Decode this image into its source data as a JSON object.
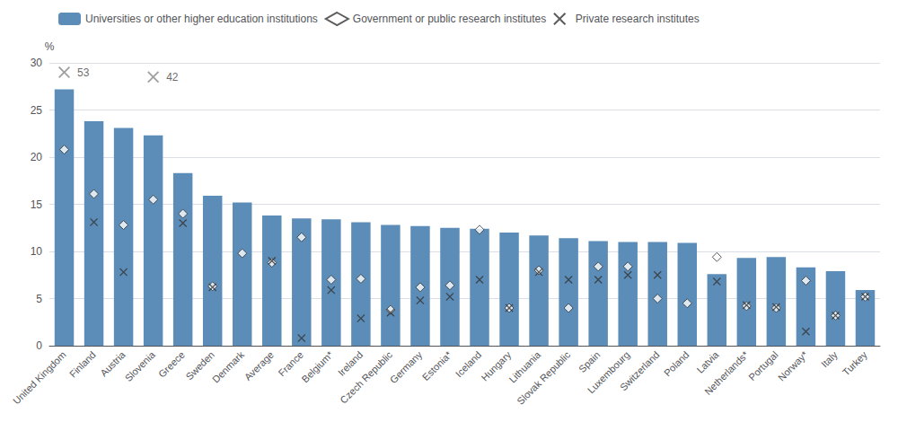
{
  "chart_data": {
    "type": "bar",
    "ylabel": "%",
    "categories": [
      "United Kingdom",
      "Finland",
      "Austria",
      "Slovenia",
      "Greece",
      "Sweden",
      "Denmark",
      "Average",
      "France",
      "Belgium*",
      "Ireland",
      "Czech Republic",
      "Germany",
      "Estonia*",
      "Iceland",
      "Hungary",
      "Lithuania",
      "Slovak Republic",
      "Spain",
      "Luxembourg",
      "Switzerland",
      "Poland",
      "Latvia",
      "Netherlands*",
      "Portugal",
      "Norway*",
      "Italy",
      "Turkey"
    ],
    "series": [
      {
        "name": "Universities or other higher education institutions",
        "type": "bar",
        "color": "#5B8DB8",
        "values": [
          27.2,
          23.8,
          23.1,
          22.3,
          18.3,
          15.9,
          15.2,
          13.8,
          13.5,
          13.4,
          13.1,
          12.8,
          12.7,
          12.5,
          12.4,
          12.0,
          11.7,
          11.4,
          11.1,
          11.0,
          11.0,
          10.9,
          7.6,
          9.3,
          9.4,
          8.3,
          7.9,
          5.9
        ]
      },
      {
        "name": "Government or public research institutes",
        "type": "scatter",
        "marker": "diamond",
        "color": "#333333",
        "values": [
          20.8,
          16.1,
          12.8,
          15.5,
          14.0,
          6.3,
          9.8,
          8.8,
          11.5,
          7.0,
          7.1,
          3.8,
          6.2,
          6.4,
          12.3,
          4.0,
          8.0,
          4.0,
          8.4,
          8.4,
          5.0,
          4.5,
          9.4,
          4.2,
          4.0,
          6.9,
          3.2,
          5.2
        ]
      },
      {
        "name": "Private research institutes",
        "type": "scatter",
        "marker": "cross",
        "color": "#333333",
        "values": [
          null,
          13.1,
          7.8,
          null,
          13.0,
          6.2,
          null,
          9.0,
          0.8,
          5.9,
          2.9,
          3.5,
          4.8,
          5.2,
          7.0,
          4.0,
          7.8,
          7.0,
          7.0,
          7.5,
          7.5,
          null,
          6.8,
          4.3,
          4.1,
          1.5,
          3.2,
          5.2
        ]
      }
    ],
    "annotations": [
      {
        "text": "53",
        "category": "United Kingdom",
        "y": 29.0,
        "marker": "cross",
        "color": "#888888"
      },
      {
        "text": "42",
        "category": "Slovenia",
        "y": 28.5,
        "marker": "cross",
        "color": "#888888"
      }
    ],
    "ylim": [
      0,
      30
    ],
    "yticks": [
      0,
      5,
      10,
      15,
      20,
      25,
      30
    ],
    "grid": true,
    "legend": "top"
  }
}
